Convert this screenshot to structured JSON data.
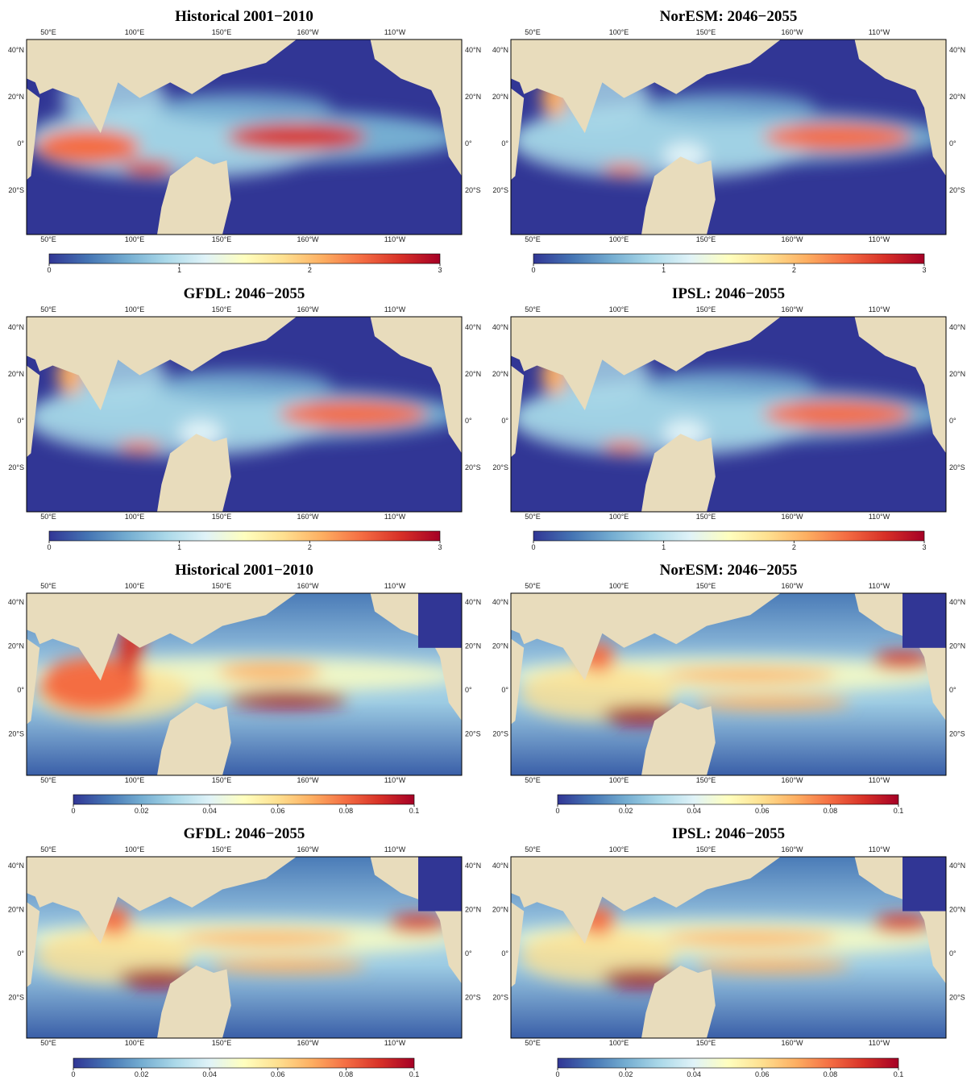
{
  "panels": [
    {
      "title": "Historical 2001−2010",
      "colorbar": {
        "lim": [
          0,
          3
        ],
        "ticks": [
          0,
          1,
          2,
          3
        ]
      }
    },
    {
      "title": "NorESM: 2046−2055",
      "colorbar": {
        "lim": [
          0,
          3
        ],
        "ticks": [
          0,
          1,
          2,
          3
        ]
      }
    },
    {
      "title": "GFDL: 2046−2055",
      "colorbar": {
        "lim": [
          0,
          3
        ],
        "ticks": [
          0,
          1,
          2,
          3
        ]
      }
    },
    {
      "title": "IPSL: 2046−2055",
      "colorbar": {
        "lim": [
          0,
          3
        ],
        "ticks": [
          0,
          1,
          2,
          3
        ]
      }
    },
    {
      "title": "Historical 2001−2010",
      "colorbar": {
        "lim": [
          0,
          0.1
        ],
        "ticks": [
          0,
          0.02,
          0.04,
          0.06,
          0.08,
          0.1
        ]
      }
    },
    {
      "title": "NorESM: 2046−2055",
      "colorbar": {
        "lim": [
          0,
          0.1
        ],
        "ticks": [
          0,
          0.02,
          0.04,
          0.06,
          0.08,
          0.1
        ]
      }
    },
    {
      "title": "GFDL: 2046−2055",
      "colorbar": {
        "lim": [
          0,
          0.1
        ],
        "ticks": [
          0,
          0.02,
          0.04,
          0.06,
          0.08,
          0.1
        ]
      }
    },
    {
      "title": "IPSL: 2046−2055",
      "colorbar": {
        "lim": [
          0,
          0.1
        ],
        "ticks": [
          0,
          0.02,
          0.04,
          0.06,
          0.08,
          0.1
        ]
      }
    }
  ],
  "lon_labels": [
    "50°E",
    "100°E",
    "150°E",
    "160°W",
    "110°W"
  ],
  "lat_labels": [
    "40°N",
    "20°N",
    "0°",
    "20°S"
  ]
}
